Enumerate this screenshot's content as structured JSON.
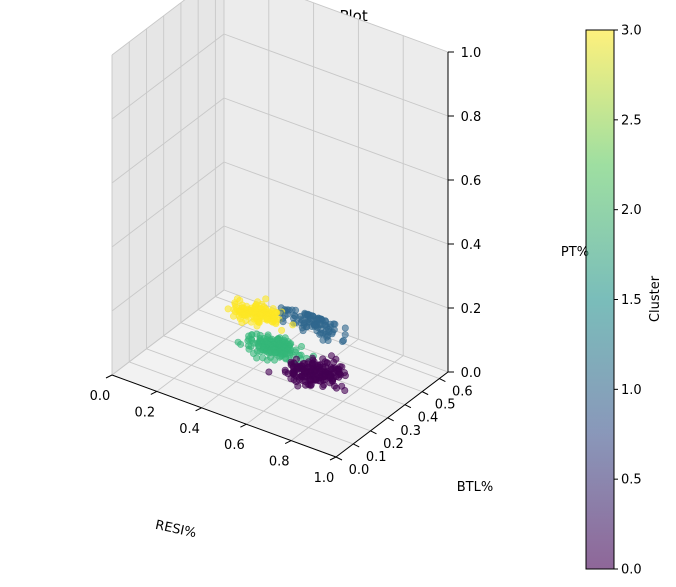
{
  "chart_data": {
    "type": "scatter",
    "title": "KMeans 3D Cluster Plot",
    "xlabel": "RESI%",
    "ylabel": "BTL%",
    "zlabel": "PT%",
    "x_ticks": [
      "0.0",
      "0.2",
      "0.4",
      "0.6",
      "0.8",
      "1.0"
    ],
    "y_ticks": [
      "0.0",
      "0.1",
      "0.2",
      "0.3",
      "0.4",
      "0.5",
      "0.6"
    ],
    "z_ticks": [
      "0.0",
      "0.2",
      "0.4",
      "0.6",
      "0.8",
      "1.0"
    ],
    "xlim": [
      0.0,
      1.0
    ],
    "ylim": [
      0.0,
      0.65
    ],
    "zlim": [
      0.0,
      1.0
    ],
    "grid": true,
    "colorbar": {
      "label": "Cluster",
      "range": [
        0.0,
        3.0
      ],
      "ticks": [
        "0.0",
        "0.5",
        "1.0",
        "1.5",
        "2.0",
        "2.5",
        "3.0"
      ],
      "colormap": [
        "#440154",
        "#3b528b",
        "#21918c",
        "#5ec962",
        "#fde725"
      ]
    },
    "series": [
      {
        "name": "0",
        "color": "#440154",
        "center": [
          0.6,
          0.4,
          0.0
        ],
        "spread": [
          0.1,
          0.07,
          0.0
        ],
        "count": 190
      },
      {
        "name": "1",
        "color": "#31688e",
        "center": [
          0.42,
          0.62,
          0.02
        ],
        "spread": [
          0.11,
          0.05,
          0.0
        ],
        "count": 95
      },
      {
        "name": "2",
        "color": "#35b779",
        "center": [
          0.38,
          0.45,
          0.0
        ],
        "spread": [
          0.09,
          0.05,
          0.0
        ],
        "count": 190
      },
      {
        "name": "3",
        "color": "#fde725",
        "center": [
          0.22,
          0.56,
          0.02
        ],
        "spread": [
          0.1,
          0.05,
          0.0
        ],
        "count": 140
      }
    ]
  }
}
